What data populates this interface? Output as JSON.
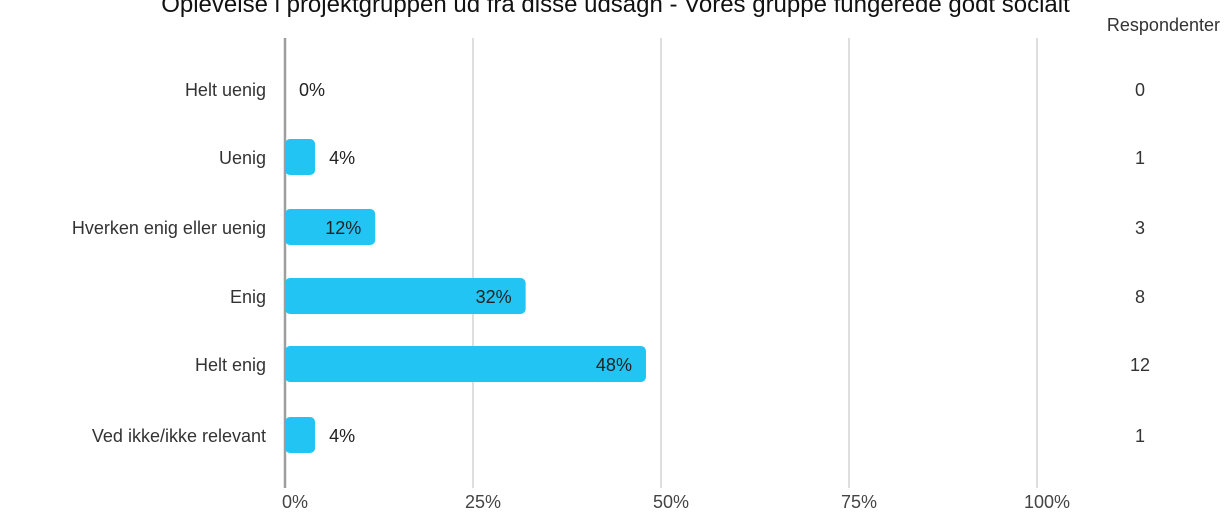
{
  "chart_data": {
    "type": "bar",
    "orientation": "horizontal",
    "title": "Oplevelse i projektgruppen ud fra disse udsagn - Vores gruppe fungerede godt socialt",
    "categories": [
      "Helt uenig",
      "Uenig",
      "Hverken enig eller uenig",
      "Enig",
      "Helt enig",
      "Ved ikke/ikke relevant"
    ],
    "values": [
      0,
      4,
      12,
      32,
      48,
      4
    ],
    "value_labels": [
      "0%",
      "4%",
      "12%",
      "32%",
      "48%",
      "4%"
    ],
    "respondent_header": "Respondenter",
    "respondents": [
      "0",
      "1",
      "3",
      "8",
      "12",
      "1"
    ],
    "xlim": [
      0,
      100
    ],
    "x_ticks": [
      0,
      25,
      50,
      75,
      100
    ],
    "x_tick_labels": [
      "0%",
      "25%",
      "50%",
      "75%",
      "100%"
    ],
    "grid": true,
    "bar_color": "#21c4f3",
    "grid_color": "#bdbdbd",
    "axis_color": "#9e9e9e"
  }
}
